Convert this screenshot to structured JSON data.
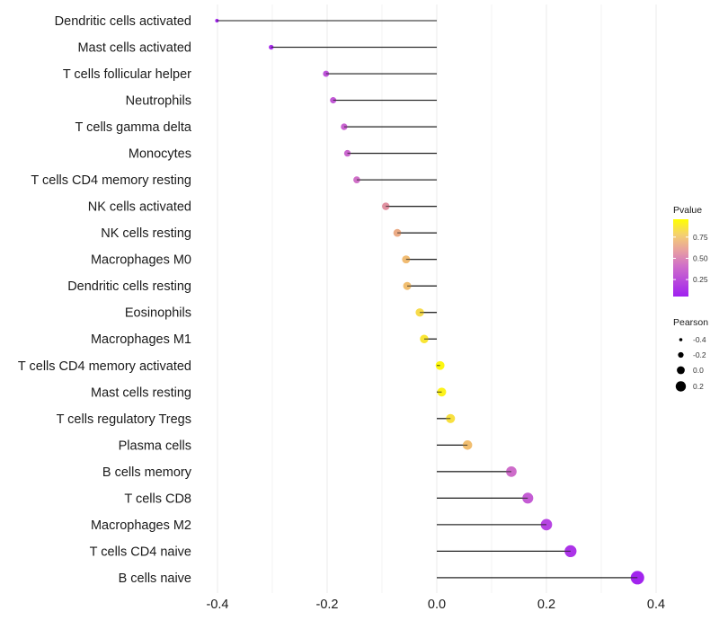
{
  "chart_data": {
    "type": "lollipop",
    "title": "",
    "xlabel": "",
    "ylabel": "",
    "xlim": [
      -0.42,
      0.42
    ],
    "x_ticks": [
      -0.4,
      -0.2,
      0.0,
      0.2,
      0.4
    ],
    "x_tick_labels": [
      "-0.4",
      "-0.2",
      "0.0",
      "0.2",
      "0.4"
    ],
    "x_minor_ticks": [
      -0.3,
      -0.1,
      0.1,
      0.3
    ],
    "grid": true,
    "baseline": 0,
    "categories": [
      "Dendritic cells activated",
      "Mast cells activated",
      "T cells follicular helper",
      "Neutrophils",
      "T cells gamma delta",
      "Monocytes",
      "T cells CD4 memory resting",
      "NK cells activated",
      "NK cells resting",
      "Macrophages M0",
      "Dendritic cells resting",
      "Eosinophils",
      "Macrophages M1",
      "T cells CD4 memory activated",
      "Mast cells resting",
      "T cells regulatory  Tregs ",
      "Plasma cells",
      "B cells memory",
      "T cells CD8",
      "Macrophages M2",
      "T cells CD4 naive",
      "B cells naive"
    ],
    "series": [
      {
        "name": "Pearson",
        "values": [
          -0.401,
          -0.302,
          -0.202,
          -0.189,
          -0.169,
          -0.163,
          -0.146,
          -0.093,
          -0.072,
          -0.056,
          -0.054,
          -0.031,
          -0.023,
          0.006,
          0.009,
          0.025,
          0.056,
          0.136,
          0.166,
          0.2,
          0.244,
          0.366
        ]
      },
      {
        "name": "Pvalue",
        "values": [
          0.01,
          0.06,
          0.25,
          0.28,
          0.33,
          0.35,
          0.4,
          0.55,
          0.65,
          0.72,
          0.73,
          0.86,
          0.9,
          0.97,
          0.95,
          0.88,
          0.73,
          0.38,
          0.3,
          0.18,
          0.1,
          0.02
        ]
      }
    ],
    "color_encoding": {
      "variable": "Pvalue",
      "low_color": "#a020f0",
      "mid_color": "#e088a8",
      "high_color": "#ffff00",
      "range": [
        0,
        1
      ]
    },
    "size_encoding": {
      "variable": "Pearson",
      "range": [
        -0.4,
        0.37
      ]
    },
    "legend": {
      "placement": "right",
      "color": {
        "title": "Pvalue",
        "ticks": [
          0.25,
          0.5,
          0.75
        ],
        "tick_labels": [
          "0.25",
          "0.50",
          "0.75"
        ]
      },
      "size": {
        "title": "Pearson",
        "values": [
          -0.4,
          -0.2,
          0.0,
          0.2
        ],
        "labels": [
          "-0.4",
          "-0.2",
          "0.0",
          "0.2"
        ]
      }
    }
  }
}
